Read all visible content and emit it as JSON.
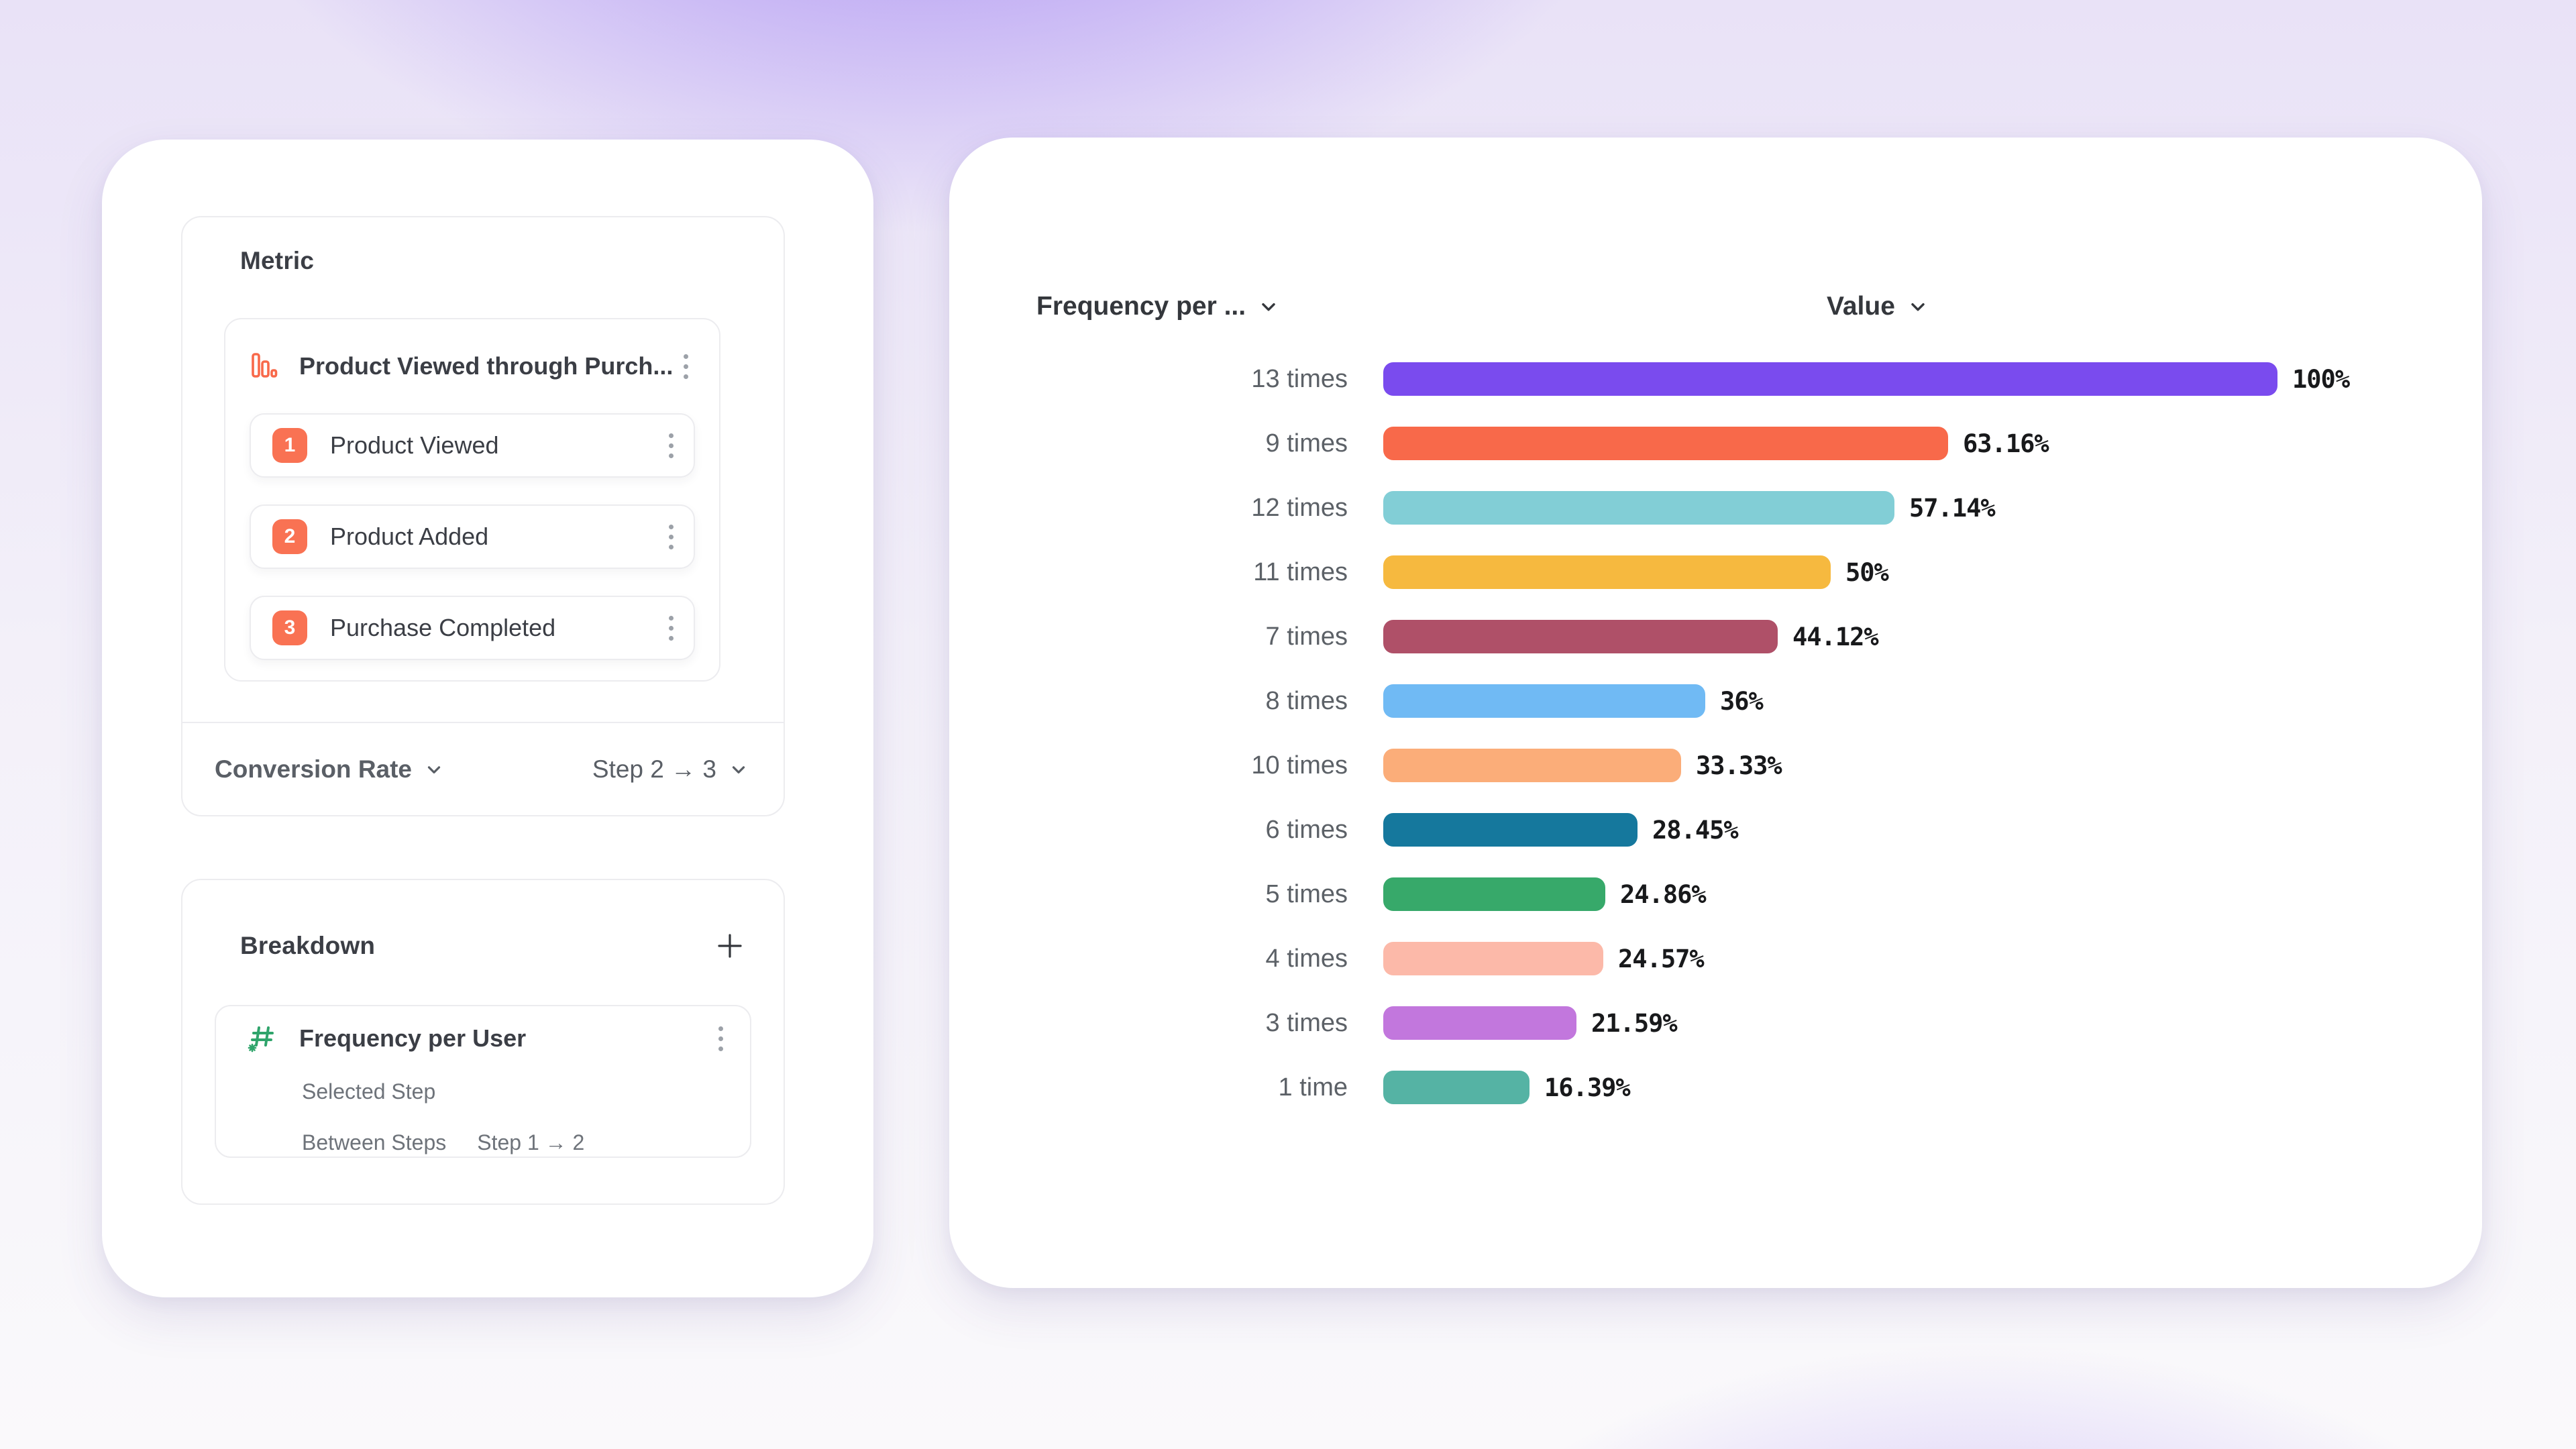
{
  "background": {
    "base": "#F8F7FB",
    "glow_top": "#8660F0",
    "glow_bottom": "#9674F0"
  },
  "accent": {
    "coral": "#F8694A",
    "badge_coral": "#F97253",
    "green": "#2FA46B",
    "text_dark": "#3B3E45",
    "text_gray": "#5A5F66",
    "text_light": "#6E737A"
  },
  "left_panel": {
    "metric_card": {
      "title": "Metric",
      "funnel": {
        "icon": "funnel-bar-chart-icon",
        "name": "Product Viewed through Purch...",
        "steps": [
          {
            "number": "1",
            "label": "Product Viewed"
          },
          {
            "number": "2",
            "label": "Product Added"
          },
          {
            "number": "3",
            "label": "Purchase Completed"
          }
        ]
      },
      "footer": {
        "measurement": "Conversion Rate",
        "step_range": "Step 2 → 3"
      }
    },
    "breakdown_card": {
      "title": "Breakdown",
      "item": {
        "icon": "hashtag-numeric-icon",
        "name": "Frequency per User",
        "row1_label": "Selected Step",
        "row2_label": "Between Steps",
        "row2_value": "Step 1 → 2"
      }
    }
  },
  "chart": {
    "category_header": "Frequency per ...",
    "value_header": "Value"
  },
  "chart_data": {
    "type": "bar",
    "orientation": "horizontal",
    "title": "",
    "xlabel": "",
    "ylabel": "",
    "xlim": [
      0,
      100
    ],
    "grid": false,
    "legend": false,
    "categories": [
      "13 times",
      "9 times",
      "12 times",
      "11 times",
      "7 times",
      "8 times",
      "10 times",
      "6 times",
      "5 times",
      "4 times",
      "3 times",
      "1 time"
    ],
    "values": [
      100,
      63.16,
      57.14,
      50,
      44.12,
      36,
      33.33,
      28.45,
      24.86,
      24.57,
      21.59,
      16.39
    ],
    "value_labels": [
      "100%",
      "63.16%",
      "57.14%",
      "50%",
      "44.12%",
      "36%",
      "33.33%",
      "28.45%",
      "24.86%",
      "24.57%",
      "21.59%",
      "16.39%"
    ],
    "bar_colors": [
      "#7A4BEE",
      "#F8694A",
      "#82CED6",
      "#F6B93F",
      "#AF5068",
      "#70BAF4",
      "#FBAD79",
      "#15789D",
      "#37A96A",
      "#FCB9A9",
      "#C277DD",
      "#55B3A4"
    ]
  }
}
